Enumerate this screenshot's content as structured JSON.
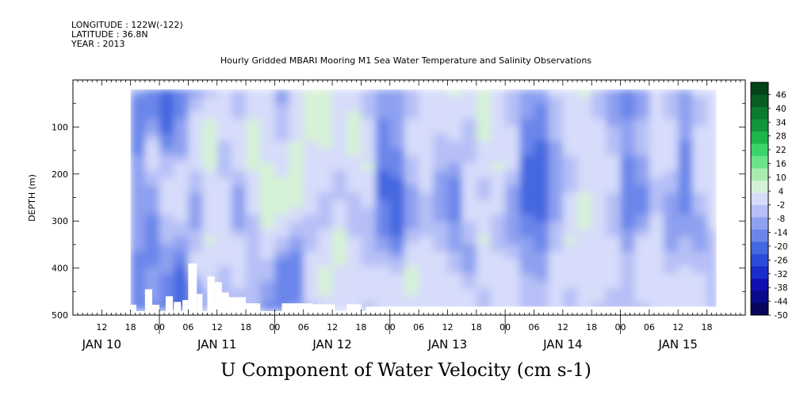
{
  "header": {
    "longitude": "LONGITUDE : 122W(-122)",
    "latitude": "LATITUDE : 36.8N",
    "year": "YEAR : 2013",
    "title": "Hourly Gridded MBARI Mooring M1 Sea Water Temperature and Salinity Observations"
  },
  "chart_data": {
    "type": "heatmap",
    "title": "Hourly Gridded MBARI Mooring M1 Sea Water Temperature and Salinity Observations",
    "xlabel": "U Component of Water Velocity (cm s-1)",
    "ylabel": "DEPTH (m)",
    "x_hours": [
      6,
      146
    ],
    "data_x_hours": [
      18,
      140
    ],
    "y_depth": [
      0,
      500
    ],
    "data_depth": [
      20,
      490
    ],
    "y_reversed": true,
    "y_ticks": [
      100,
      200,
      300,
      400,
      500
    ],
    "y_minor": [
      50,
      150,
      250,
      350,
      450
    ],
    "x_hour_ticks": [
      {
        "h": 12,
        "label": "12"
      },
      {
        "h": 18,
        "label": "18"
      },
      {
        "h": 24,
        "label": "00"
      },
      {
        "h": 30,
        "label": "06"
      },
      {
        "h": 36,
        "label": "12"
      },
      {
        "h": 42,
        "label": "18"
      },
      {
        "h": 48,
        "label": "00"
      },
      {
        "h": 54,
        "label": "06"
      },
      {
        "h": 60,
        "label": "12"
      },
      {
        "h": 66,
        "label": "18"
      },
      {
        "h": 72,
        "label": "00"
      },
      {
        "h": 78,
        "label": "06"
      },
      {
        "h": 84,
        "label": "12"
      },
      {
        "h": 90,
        "label": "18"
      },
      {
        "h": 96,
        "label": "00"
      },
      {
        "h": 102,
        "label": "06"
      },
      {
        "h": 108,
        "label": "12"
      },
      {
        "h": 114,
        "label": "18"
      },
      {
        "h": 120,
        "label": "00"
      },
      {
        "h": 126,
        "label": "06"
      },
      {
        "h": 132,
        "label": "12"
      },
      {
        "h": 138,
        "label": "18"
      }
    ],
    "day_labels": [
      {
        "h": 12,
        "label": "JAN 10"
      },
      {
        "h": 36,
        "label": "JAN 11"
      },
      {
        "h": 60,
        "label": "JAN 12"
      },
      {
        "h": 84,
        "label": "JAN 13"
      },
      {
        "h": 108,
        "label": "JAN 14"
      },
      {
        "h": 132,
        "label": "JAN 15"
      }
    ],
    "colorbar": {
      "levels": [
        -50,
        -44,
        -38,
        -32,
        -26,
        -20,
        -14,
        -8,
        -2,
        4,
        10,
        16,
        22,
        28,
        34,
        40,
        46
      ],
      "labels": [
        "-50",
        "-44",
        "-38",
        "-32",
        "-26",
        "-20",
        "-14",
        "-8",
        "-2",
        "4",
        "10",
        "16",
        "22",
        "28",
        "34",
        "40",
        "46"
      ],
      "low_colors": [
        "#07075c",
        "#0a0a8a",
        "#1010b0",
        "#1a2ccc",
        "#2a4cd8",
        "#4468e0",
        "#6a86ea",
        "#8ea0f0",
        "#b6c0f6",
        "#d6dcfa"
      ],
      "high_colors": [
        "#d6f2d6",
        "#a8ecb0",
        "#6ee48a",
        "#3ad46a",
        "#1cb64c",
        "#12963c",
        "#0c7a30",
        "#075e24",
        "#034418"
      ]
    },
    "field_columns": [
      {
        "h": 18,
        "d": [
          -8,
          -12,
          -10,
          -6,
          -4,
          -2,
          -6,
          -10,
          -14,
          -12
        ]
      },
      {
        "h": 21,
        "d": [
          -14,
          -10,
          4,
          6,
          -4,
          -8,
          -10,
          -8,
          -6,
          -10
        ]
      },
      {
        "h": 24,
        "d": [
          -16,
          -20,
          -10,
          2,
          8,
          4,
          -2,
          -6,
          -12,
          -14
        ]
      },
      {
        "h": 27,
        "d": [
          -14,
          -8,
          -6,
          4,
          10,
          8,
          -4,
          -14,
          -18,
          -16
        ]
      },
      {
        "h": 30,
        "d": [
          -4,
          8,
          10,
          6,
          -2,
          -8,
          2,
          8,
          -6,
          -10
        ]
      },
      {
        "h": 33,
        "d": [
          2,
          10,
          14,
          10,
          6,
          8,
          10,
          6,
          4,
          -4
        ]
      },
      {
        "h": 36,
        "d": [
          8,
          6,
          4,
          2,
          6,
          10,
          8,
          4,
          2,
          0
        ]
      },
      {
        "h": 39,
        "d": [
          -2,
          4,
          8,
          6,
          -4,
          -8,
          6,
          10,
          4,
          -2
        ]
      },
      {
        "h": 42,
        "d": [
          6,
          10,
          12,
          10,
          8,
          4,
          2,
          -2,
          4,
          2
        ]
      },
      {
        "h": 45,
        "d": [
          4,
          6,
          8,
          10,
          12,
          14,
          8,
          2,
          -6,
          -10
        ]
      },
      {
        "h": 48,
        "d": [
          -4,
          2,
          4,
          8,
          12,
          10,
          2,
          -10,
          -14,
          -12
        ]
      },
      {
        "h": 51,
        "d": [
          4,
          6,
          10,
          14,
          16,
          8,
          -6,
          -12,
          -10,
          -6
        ]
      },
      {
        "h": 54,
        "d": [
          10,
          12,
          10,
          8,
          6,
          4,
          2,
          6,
          8,
          2
        ]
      },
      {
        "h": 57,
        "d": [
          14,
          16,
          12,
          6,
          4,
          2,
          6,
          10,
          12,
          6
        ]
      },
      {
        "h": 60,
        "d": [
          8,
          10,
          6,
          4,
          2,
          8,
          12,
          10,
          8,
          4
        ]
      },
      {
        "h": 63,
        "d": [
          6,
          12,
          14,
          8,
          4,
          2,
          4,
          6,
          8,
          4
        ]
      },
      {
        "h": 66,
        "d": [
          2,
          4,
          8,
          10,
          6,
          2,
          -2,
          4,
          6,
          2
        ]
      },
      {
        "h": 69,
        "d": [
          -6,
          -8,
          -10,
          -14,
          -16,
          -12,
          -8,
          4,
          8,
          6
        ]
      },
      {
        "h": 72,
        "d": [
          -4,
          -2,
          -6,
          -12,
          -18,
          -20,
          -14,
          2,
          10,
          8
        ]
      },
      {
        "h": 75,
        "d": [
          -2,
          4,
          6,
          2,
          -4,
          -8,
          2,
          10,
          12,
          6
        ]
      },
      {
        "h": 78,
        "d": [
          6,
          8,
          10,
          8,
          4,
          -2,
          4,
          8,
          6,
          4
        ]
      },
      {
        "h": 81,
        "d": [
          8,
          6,
          2,
          -2,
          -6,
          -4,
          2,
          6,
          10,
          8
        ]
      },
      {
        "h": 84,
        "d": [
          10,
          8,
          4,
          -4,
          -12,
          -10,
          -4,
          2,
          8,
          10
        ]
      },
      {
        "h": 87,
        "d": [
          6,
          4,
          2,
          4,
          8,
          6,
          -2,
          -6,
          4,
          6
        ]
      },
      {
        "h": 90,
        "d": [
          12,
          14,
          10,
          6,
          2,
          6,
          10,
          8,
          4,
          2
        ]
      },
      {
        "h": 93,
        "d": [
          4,
          6,
          8,
          10,
          8,
          4,
          2,
          6,
          8,
          4
        ]
      },
      {
        "h": 96,
        "d": [
          -2,
          2,
          6,
          4,
          -4,
          -8,
          -4,
          6,
          10,
          6
        ]
      },
      {
        "h": 99,
        "d": [
          -4,
          -8,
          -12,
          -16,
          -18,
          -14,
          -8,
          -4,
          2,
          4
        ]
      },
      {
        "h": 102,
        "d": [
          -6,
          -10,
          -14,
          -18,
          -20,
          -16,
          -10,
          -6,
          0,
          2
        ]
      },
      {
        "h": 105,
        "d": [
          4,
          2,
          -2,
          -6,
          -8,
          -4,
          2,
          6,
          8,
          6
        ]
      },
      {
        "h": 108,
        "d": [
          8,
          10,
          6,
          2,
          4,
          8,
          10,
          6,
          4,
          2
        ]
      },
      {
        "h": 111,
        "d": [
          10,
          8,
          4,
          6,
          10,
          12,
          8,
          4,
          6,
          4
        ]
      },
      {
        "h": 114,
        "d": [
          2,
          4,
          6,
          8,
          6,
          4,
          8,
          10,
          6,
          2
        ]
      },
      {
        "h": 117,
        "d": [
          -6,
          -4,
          2,
          6,
          4,
          -2,
          4,
          8,
          4,
          -2
        ]
      },
      {
        "h": 120,
        "d": [
          -10,
          -8,
          -6,
          -10,
          -14,
          -12,
          -6,
          2,
          4,
          0
        ]
      },
      {
        "h": 123,
        "d": [
          -4,
          -2,
          2,
          -4,
          -10,
          -8,
          4,
          8,
          6,
          2
        ]
      },
      {
        "h": 126,
        "d": [
          6,
          8,
          10,
          6,
          2,
          4,
          8,
          10,
          8,
          4
        ]
      },
      {
        "h": 129,
        "d": [
          2,
          4,
          6,
          4,
          -2,
          -6,
          -4,
          2,
          6,
          8
        ]
      },
      {
        "h": 132,
        "d": [
          -4,
          -6,
          -8,
          -10,
          -12,
          -8,
          -2,
          4,
          8,
          6
        ]
      },
      {
        "h": 135,
        "d": [
          4,
          2,
          6,
          8,
          4,
          -2,
          -6,
          2,
          6,
          4
        ]
      },
      {
        "h": 138,
        "d": [
          8,
          6,
          4,
          8,
          10,
          6,
          2,
          4,
          2,
          0
        ]
      },
      {
        "h": 140,
        "d": [
          4,
          2,
          6,
          10,
          8,
          4,
          6,
          2,
          -2,
          -4
        ]
      }
    ],
    "bottom_gaps": [
      {
        "h0": 18,
        "h1": 19.2,
        "depth": 478
      },
      {
        "h0": 21,
        "h1": 22.5,
        "depth": 445
      },
      {
        "h0": 22.5,
        "h1": 24,
        "depth": 478
      },
      {
        "h0": 25.3,
        "h1": 26.8,
        "depth": 460
      },
      {
        "h0": 27,
        "h1": 28.5,
        "depth": 472
      },
      {
        "h0": 28.8,
        "h1": 30,
        "depth": 468
      },
      {
        "h0": 30,
        "h1": 31.8,
        "depth": 390
      },
      {
        "h0": 31.8,
        "h1": 33,
        "depth": 455
      },
      {
        "h0": 34,
        "h1": 35.5,
        "depth": 418
      },
      {
        "h0": 35.5,
        "h1": 37,
        "depth": 430
      },
      {
        "h0": 37,
        "h1": 38.5,
        "depth": 452
      },
      {
        "h0": 38.5,
        "h1": 42,
        "depth": 462
      },
      {
        "h0": 42,
        "h1": 45,
        "depth": 475
      },
      {
        "h0": 49.5,
        "h1": 56,
        "depth": 475
      },
      {
        "h0": 56,
        "h1": 60.5,
        "depth": 477
      },
      {
        "h0": 63,
        "h1": 66,
        "depth": 477
      },
      {
        "h0": 67,
        "h1": 140,
        "depth": 482
      }
    ]
  }
}
